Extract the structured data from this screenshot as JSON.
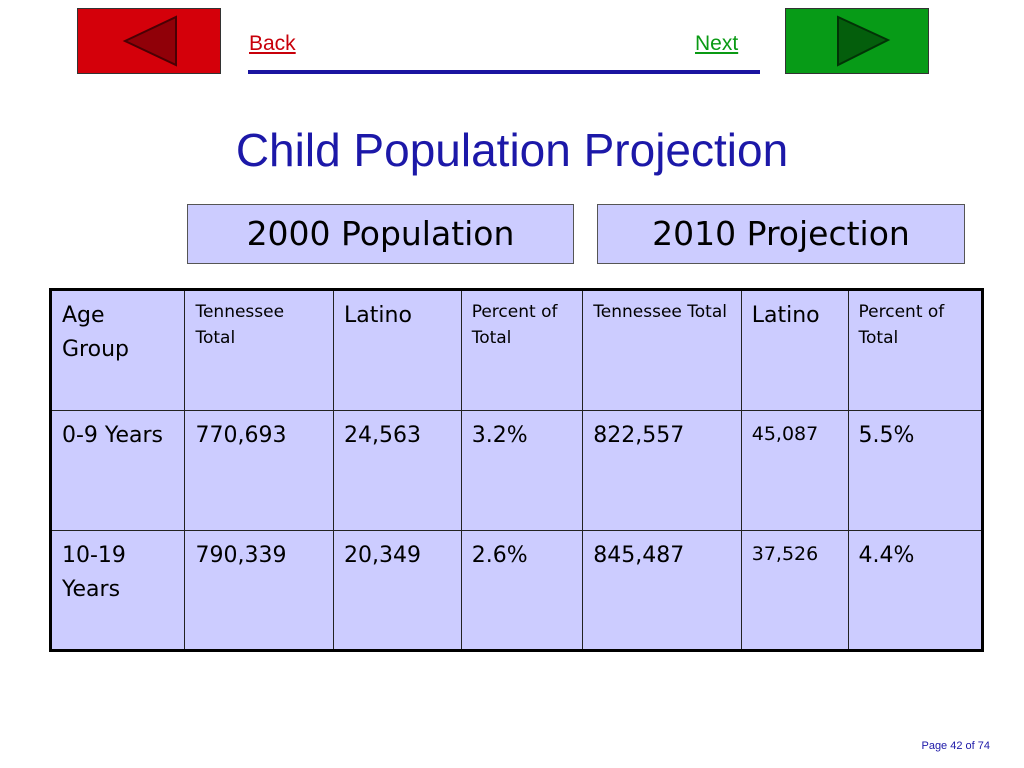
{
  "nav": {
    "back_label": "Back",
    "next_label": "Next",
    "back_color": "#d4000a",
    "next_color": "#079b17"
  },
  "title": "Child Population Projection",
  "groups": {
    "g2000": "2000 Population",
    "g2010": "2010 Projection"
  },
  "table": {
    "headers": [
      "Age Group",
      "Tennessee Total",
      "Latino",
      "Percent of Total",
      "Tennessee Total",
      "Latino",
      "Percent of Total"
    ],
    "rows": [
      [
        "0-9 Years",
        "770,693",
        "24,563",
        "3.2%",
        "822,557",
        "45,087",
        "5.5%"
      ],
      [
        "10-19 Years",
        "790,339",
        "20,349",
        "2.6%",
        "845,487",
        "37,526",
        "4.4%"
      ]
    ]
  },
  "footer": {
    "page": "Page 42 of 74"
  }
}
